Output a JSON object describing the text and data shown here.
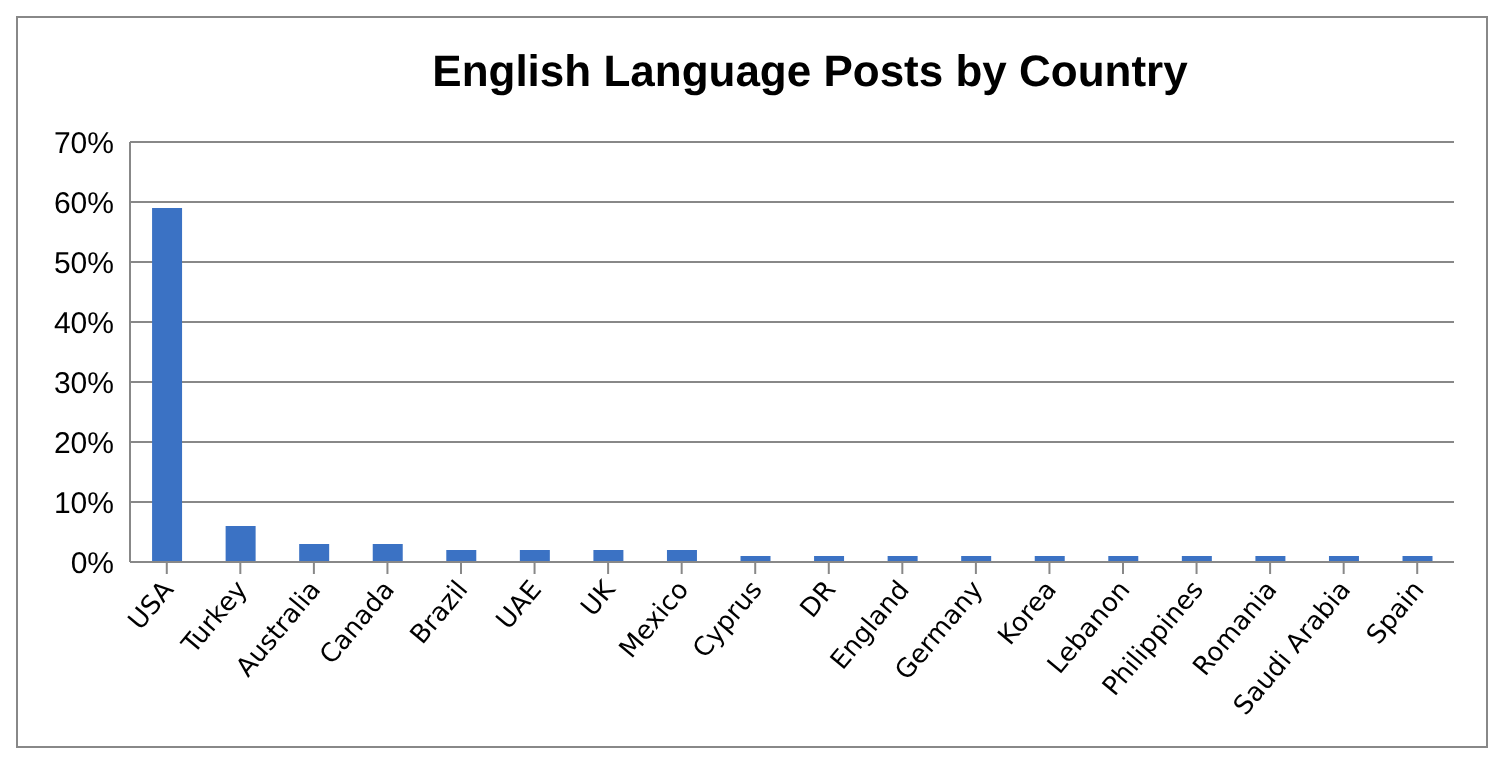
{
  "chart_data": {
    "type": "bar",
    "title": "English Language Posts by Country",
    "categories": [
      "USA",
      "Turkey",
      "Australia",
      "Canada",
      "Brazil",
      "UAE",
      "UK",
      "Mexico",
      "Cyprus",
      "DR",
      "England",
      "Germany",
      "Korea",
      "Lebanon",
      "Philippines",
      "Romania",
      "Saudi Arabia",
      "Spain"
    ],
    "values": [
      59,
      6,
      3,
      3,
      2,
      2,
      2,
      2,
      1,
      1,
      1,
      1,
      1,
      1,
      1,
      1,
      1,
      1
    ],
    "color": "#3b72c4",
    "ylim": [
      0,
      70
    ],
    "yticks": [
      {
        "value": 0,
        "label": "0%"
      },
      {
        "value": 10,
        "label": "10%"
      },
      {
        "value": 20,
        "label": "20%"
      },
      {
        "value": 30,
        "label": "30%"
      },
      {
        "value": 40,
        "label": "40%"
      },
      {
        "value": 50,
        "label": "50%"
      },
      {
        "value": 60,
        "label": "60%"
      },
      {
        "value": 70,
        "label": "70%"
      }
    ],
    "grid": "y",
    "legend": false
  }
}
